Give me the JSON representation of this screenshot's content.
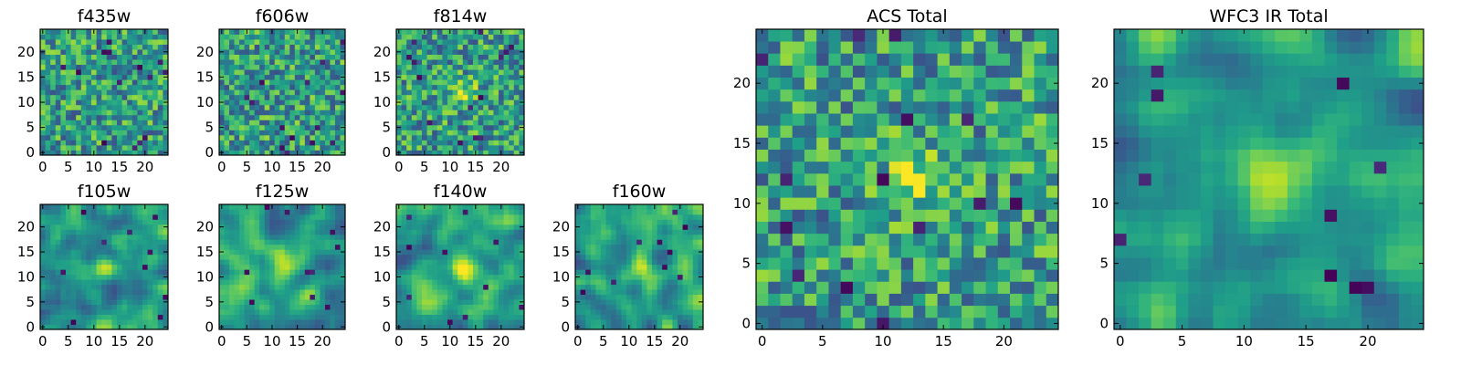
{
  "chart_data": [
    {
      "type": "heatmap",
      "title": "f435w",
      "grid": "25x25",
      "xlim": [
        -0.5,
        24.5
      ],
      "ylim": [
        -0.5,
        24.5
      ],
      "xticks": [
        0,
        5,
        10,
        15,
        20
      ],
      "yticks": [
        0,
        5,
        10,
        15,
        20
      ],
      "colormap": "viridis",
      "pattern": "noise",
      "seed": 11
    },
    {
      "type": "heatmap",
      "title": "f606w",
      "grid": "25x25",
      "xlim": [
        -0.5,
        24.5
      ],
      "ylim": [
        -0.5,
        24.5
      ],
      "xticks": [
        0,
        5,
        10,
        15,
        20
      ],
      "yticks": [
        0,
        5,
        10,
        15,
        20
      ],
      "colormap": "viridis",
      "pattern": "noise",
      "seed": 23
    },
    {
      "type": "heatmap",
      "title": "f814w",
      "grid": "25x25",
      "xlim": [
        -0.5,
        24.5
      ],
      "ylim": [
        -0.5,
        24.5
      ],
      "xticks": [
        0,
        5,
        10,
        15,
        20
      ],
      "yticks": [
        0,
        5,
        10,
        15,
        20
      ],
      "colormap": "viridis",
      "pattern": "noise_with_central_source",
      "seed": 37
    },
    {
      "type": "heatmap",
      "title": "f105w",
      "grid": "25x25",
      "xlim": [
        -0.5,
        24.5
      ],
      "ylim": [
        -0.5,
        24.5
      ],
      "xticks": [
        0,
        5,
        10,
        15,
        20
      ],
      "yticks": [
        0,
        5,
        10,
        15,
        20
      ],
      "colormap": "viridis",
      "pattern": "smooth_with_central_source",
      "seed": 41
    },
    {
      "type": "heatmap",
      "title": "f125w",
      "grid": "25x25",
      "xlim": [
        -0.5,
        24.5
      ],
      "ylim": [
        -0.5,
        24.5
      ],
      "xticks": [
        0,
        5,
        10,
        15,
        20
      ],
      "yticks": [
        0,
        5,
        10,
        15,
        20
      ],
      "colormap": "viridis",
      "pattern": "smooth_with_central_source",
      "seed": 53
    },
    {
      "type": "heatmap",
      "title": "f140w",
      "grid": "25x25",
      "xlim": [
        -0.5,
        24.5
      ],
      "ylim": [
        -0.5,
        24.5
      ],
      "xticks": [
        0,
        5,
        10,
        15,
        20
      ],
      "yticks": [
        0,
        5,
        10,
        15,
        20
      ],
      "colormap": "viridis",
      "pattern": "smooth_with_central_source",
      "seed": 67
    },
    {
      "type": "heatmap",
      "title": "f160w",
      "grid": "25x25",
      "xlim": [
        -0.5,
        24.5
      ],
      "ylim": [
        -0.5,
        24.5
      ],
      "xticks": [
        0,
        5,
        10,
        15,
        20
      ],
      "yticks": [
        0,
        5,
        10,
        15,
        20
      ],
      "colormap": "viridis",
      "pattern": "smooth_with_central_source",
      "seed": 79
    },
    {
      "type": "heatmap",
      "title": "ACS Total",
      "grid": "25x25",
      "xlim": [
        -0.5,
        24.5
      ],
      "ylim": [
        -0.5,
        24.5
      ],
      "xticks": [
        0,
        5,
        10,
        15,
        20
      ],
      "yticks": [
        0,
        5,
        10,
        15,
        20
      ],
      "colormap": "viridis",
      "pattern": "noise_with_central_source",
      "seed": 97
    },
    {
      "type": "heatmap",
      "title": "WFC3 IR Total",
      "grid": "25x25",
      "xlim": [
        -0.5,
        24.5
      ],
      "ylim": [
        -0.5,
        24.5
      ],
      "xticks": [
        0,
        5,
        10,
        15,
        20
      ],
      "yticks": [
        0,
        5,
        10,
        15,
        20
      ],
      "colormap": "viridis",
      "pattern": "smooth_with_central_source",
      "seed": 113
    }
  ]
}
